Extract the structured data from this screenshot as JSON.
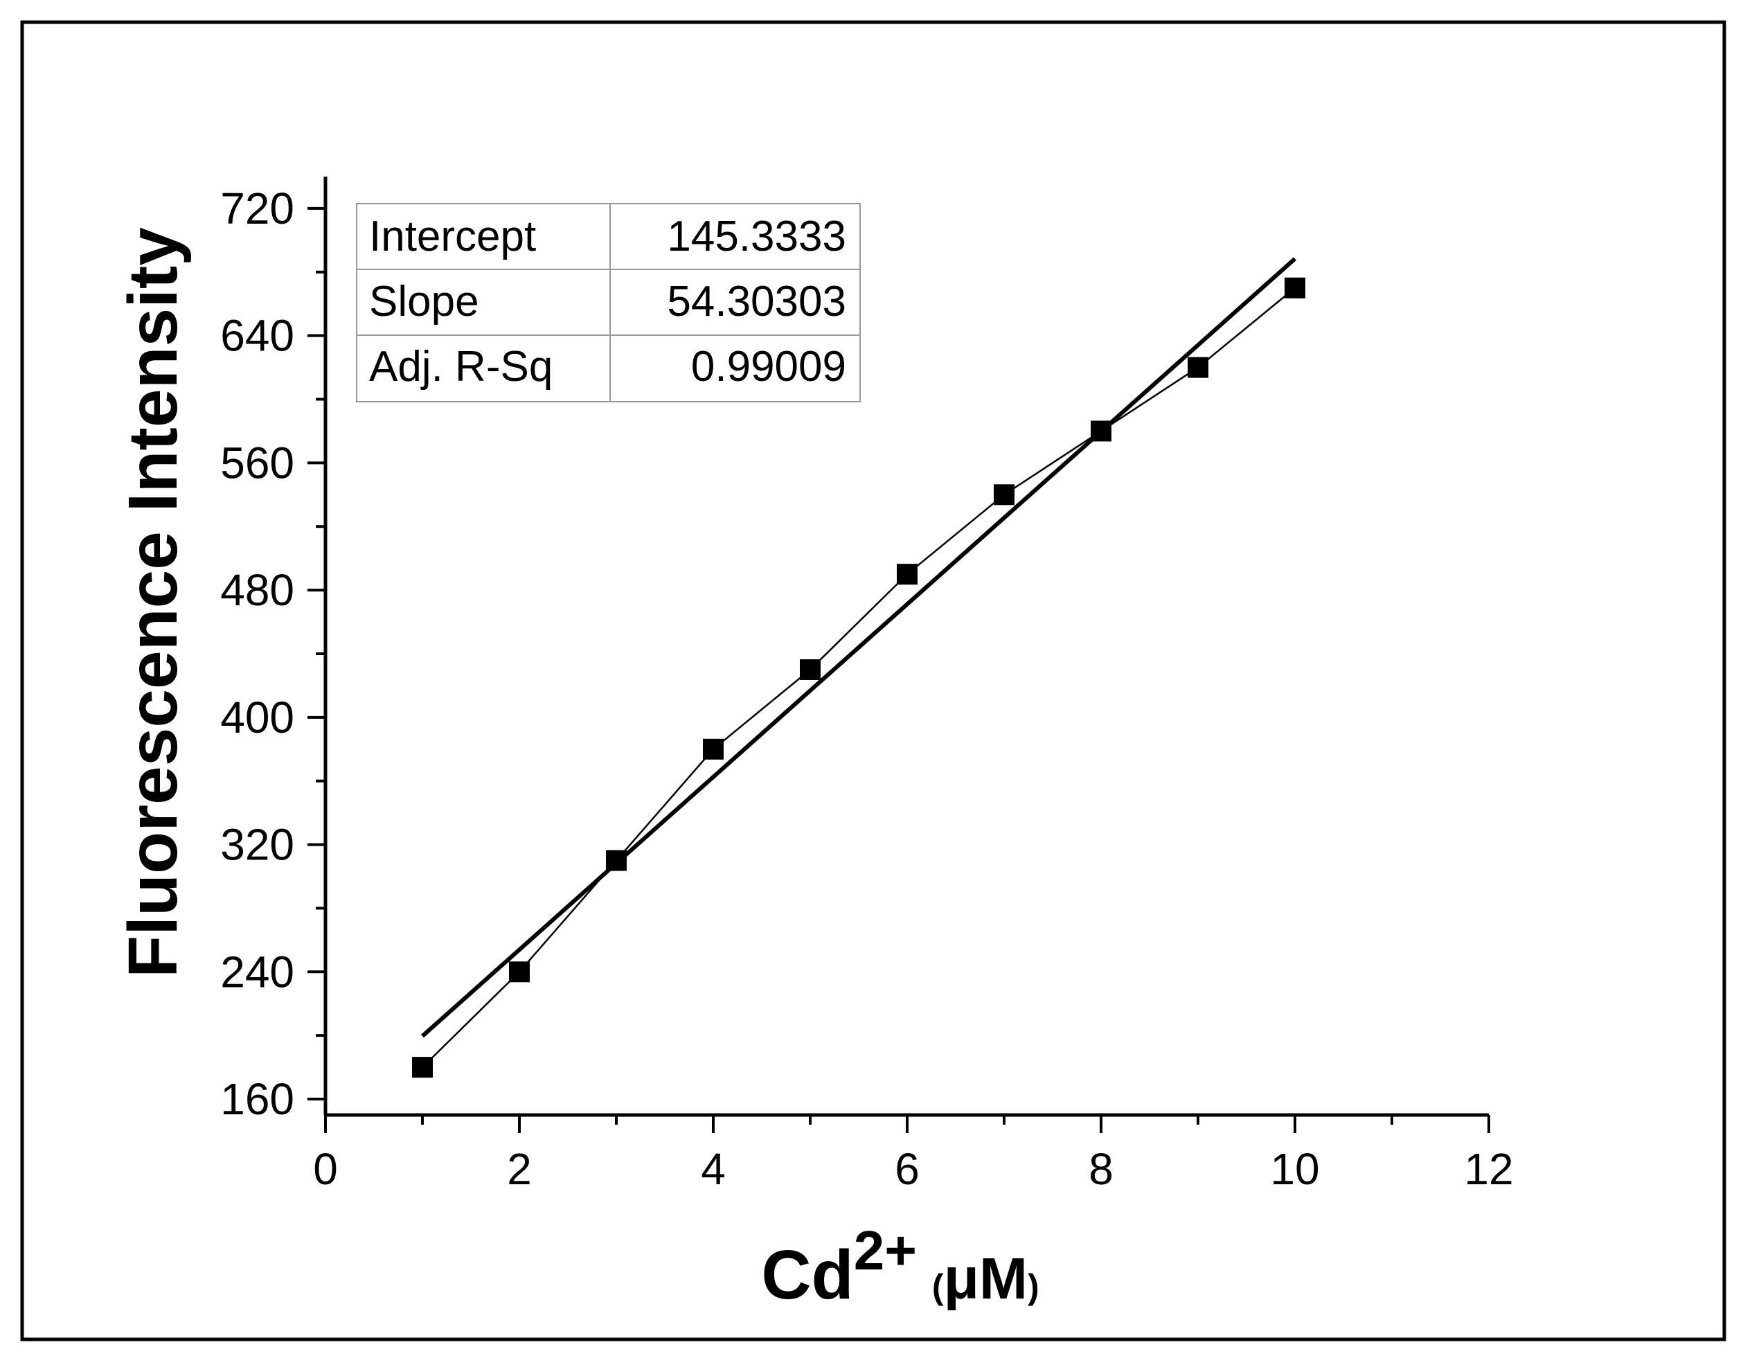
{
  "chart_data": {
    "type": "scatter",
    "x": [
      1,
      2,
      3,
      4,
      5,
      6,
      7,
      8,
      9,
      10
    ],
    "series": [
      {
        "values": [
          180,
          240,
          310,
          380,
          430,
          490,
          540,
          580,
          620,
          670
        ],
        "marker": "square",
        "connected": true
      }
    ],
    "fit_line": {
      "x_start": 1,
      "x_end": 10,
      "intercept": 145.3333,
      "slope": 54.30303
    },
    "xlabel": {
      "base": "Cd",
      "superscript": "2+",
      "unit": "μM"
    },
    "ylabel": "Fluorescence Intensity",
    "xlim": [
      0,
      12
    ],
    "ylim": [
      150,
      740
    ],
    "x_ticks": [
      0,
      2,
      4,
      6,
      8,
      10,
      12
    ],
    "y_ticks": [
      160,
      240,
      320,
      400,
      480,
      560,
      640,
      720
    ],
    "legend": "none",
    "grid": false,
    "stats_table": [
      {
        "label": "Intercept",
        "value": "145.3333"
      },
      {
        "label": "Slope",
        "value": "54.30303"
      },
      {
        "label": "Adj. R-Sq",
        "value": "0.99009"
      }
    ],
    "colors": {
      "line": "#000000",
      "marker": "#000000",
      "table_border": "#aaaaaa",
      "frame": "#000000"
    }
  }
}
